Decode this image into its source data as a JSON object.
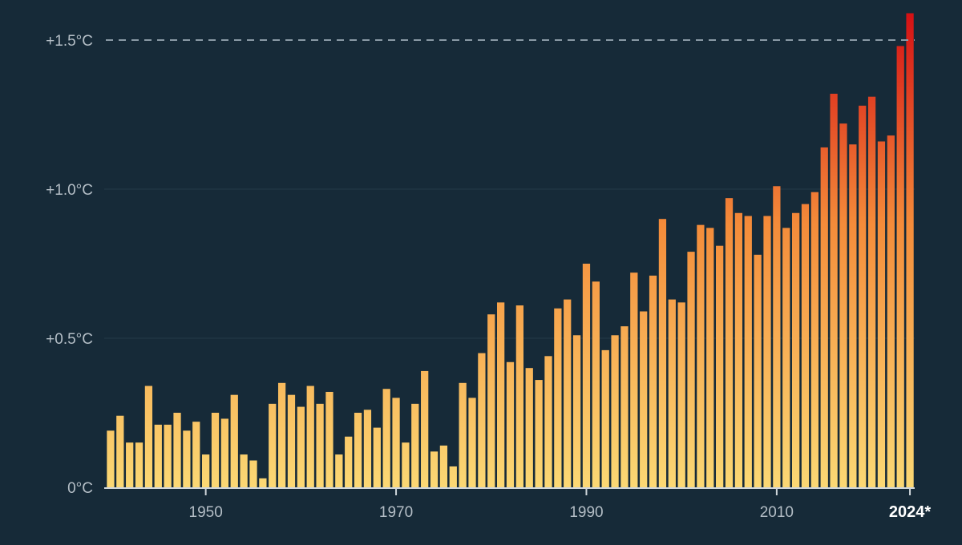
{
  "chart_data": {
    "type": "bar",
    "title": "",
    "xlabel": "",
    "ylabel": "",
    "x": [
      1940,
      1941,
      1942,
      1943,
      1944,
      1945,
      1946,
      1947,
      1948,
      1949,
      1950,
      1951,
      1952,
      1953,
      1954,
      1955,
      1956,
      1957,
      1958,
      1959,
      1960,
      1961,
      1962,
      1963,
      1964,
      1965,
      1966,
      1967,
      1968,
      1969,
      1970,
      1971,
      1972,
      1973,
      1974,
      1975,
      1976,
      1977,
      1978,
      1979,
      1980,
      1981,
      1982,
      1983,
      1984,
      1985,
      1986,
      1987,
      1988,
      1989,
      1990,
      1991,
      1992,
      1993,
      1994,
      1995,
      1996,
      1997,
      1998,
      1999,
      2000,
      2001,
      2002,
      2003,
      2004,
      2005,
      2006,
      2007,
      2008,
      2009,
      2010,
      2011,
      2012,
      2013,
      2014,
      2015,
      2016,
      2017,
      2018,
      2019,
      2020,
      2021,
      2022,
      2023,
      2024
    ],
    "values": [
      0.19,
      0.24,
      0.15,
      0.15,
      0.34,
      0.21,
      0.21,
      0.25,
      0.19,
      0.22,
      0.11,
      0.25,
      0.23,
      0.31,
      0.11,
      0.09,
      0.03,
      0.28,
      0.35,
      0.31,
      0.27,
      0.34,
      0.28,
      0.32,
      0.11,
      0.17,
      0.25,
      0.26,
      0.2,
      0.33,
      0.3,
      0.15,
      0.28,
      0.39,
      0.12,
      0.14,
      0.07,
      0.35,
      0.3,
      0.45,
      0.58,
      0.62,
      0.42,
      0.61,
      0.4,
      0.36,
      0.44,
      0.6,
      0.63,
      0.51,
      0.75,
      0.69,
      0.46,
      0.51,
      0.54,
      0.72,
      0.59,
      0.71,
      0.9,
      0.63,
      0.62,
      0.79,
      0.88,
      0.87,
      0.81,
      0.97,
      0.92,
      0.91,
      0.78,
      0.91,
      1.01,
      0.87,
      0.92,
      0.95,
      0.99,
      1.14,
      1.32,
      1.22,
      1.15,
      1.28,
      1.31,
      1.16,
      1.18,
      1.48,
      1.59
    ],
    "ylim": [
      0,
      1.6
    ],
    "yticks": [
      "0°C",
      "+0.5°C",
      "+1.0°C",
      "+1.5°C"
    ],
    "ytick_values": [
      0,
      0.5,
      1.0,
      1.5
    ],
    "xticks": [
      "1950",
      "1970",
      "1990",
      "2010",
      "2024*"
    ],
    "xtick_values": [
      1950,
      1970,
      1990,
      2010,
      2024
    ],
    "highlight_tick": "2024*",
    "reference_line": 1.5,
    "grid": true,
    "colors": {
      "background": "#162a38",
      "gradient_start": "#fbd874",
      "gradient_mid": "#f48c3a",
      "gradient_end": "#d40f14",
      "gridline": "#243a49",
      "reference": "#8a9aa6",
      "axis": "#cfd6db",
      "tick_text": "#b4bec6",
      "highlight_text": "#ffffff"
    }
  }
}
